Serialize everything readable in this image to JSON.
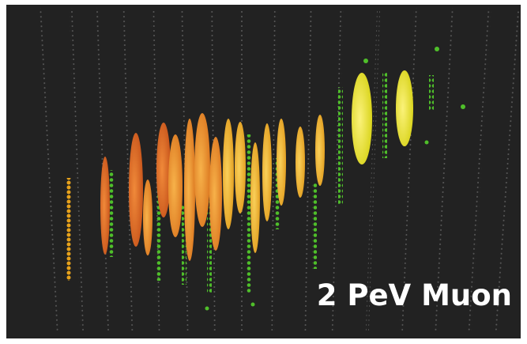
{
  "image": {
    "caption": "2 PeV Muon"
  }
}
